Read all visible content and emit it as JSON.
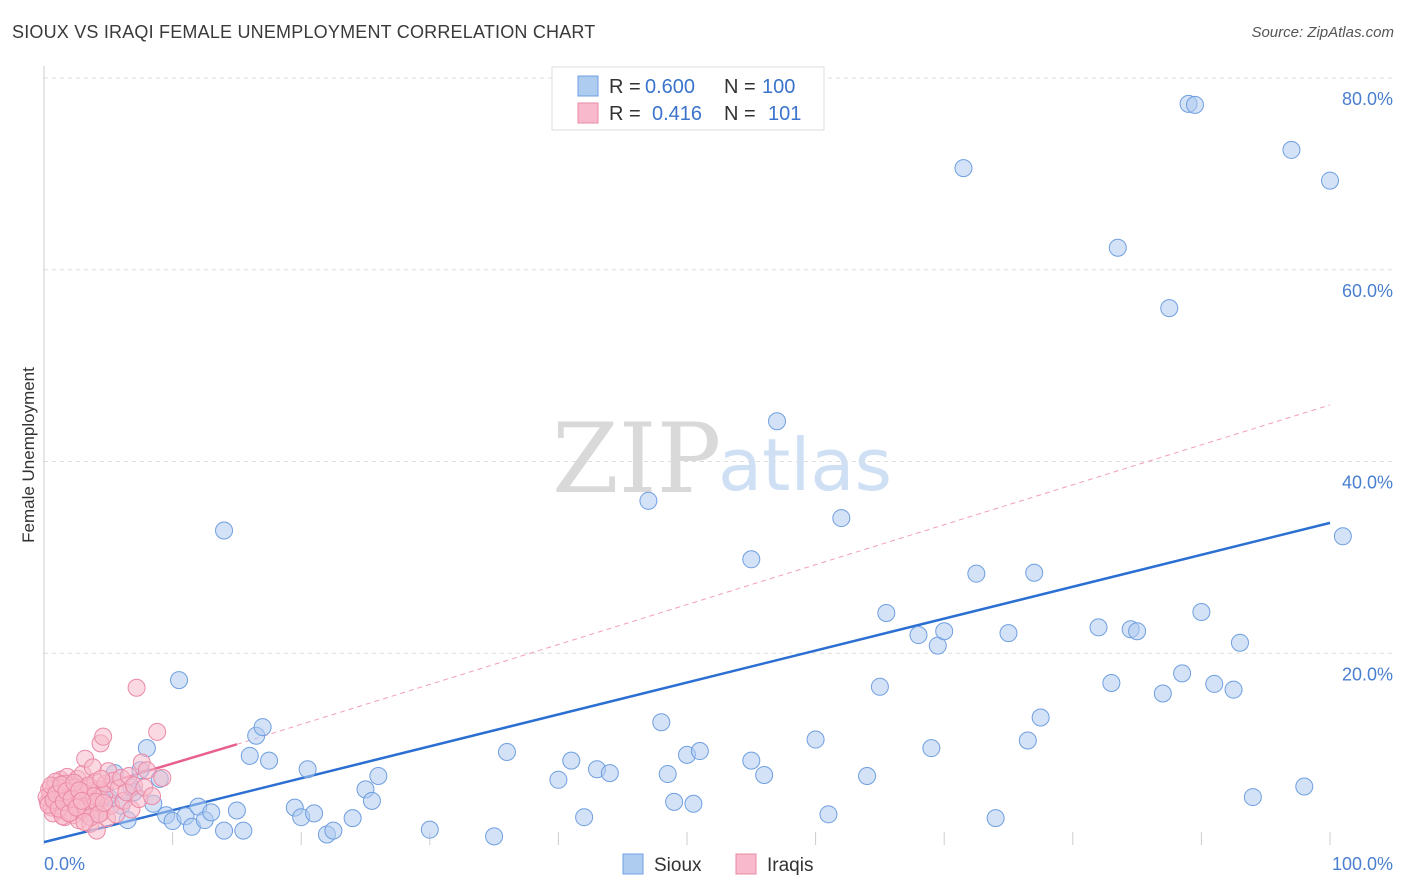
{
  "header": {
    "title": "SIOUX VS IRAQI FEMALE UNEMPLOYMENT CORRELATION CHART",
    "source": "Source: ZipAtlas.com"
  },
  "watermark": {
    "zip": "ZIP",
    "atlas": "atlas"
  },
  "colors": {
    "sioux_fill": "#aecbf0",
    "sioux_stroke": "#6f9fe0",
    "sioux_line": "#2a6fd1",
    "iraqi_fill": "#f7b9cb",
    "iraqi_stroke": "#ea8aa7",
    "iraqi_line": "#e8608c",
    "grid": "#dddddd",
    "tick_label": "#4a7fd0"
  },
  "legend": {
    "r_label": "R =",
    "n_label": "N =",
    "rows": [
      {
        "series": "Sioux",
        "r": "0.600",
        "n": "100"
      },
      {
        "series": "Iraqis",
        "r": "0.416",
        "n": "101"
      }
    ]
  },
  "chart_data": {
    "type": "scatter",
    "title": "SIOUX VS IRAQI FEMALE UNEMPLOYMENT CORRELATION CHART",
    "xlabel": "",
    "ylabel": "Female Unemployment",
    "xlim": [
      0,
      100
    ],
    "ylim": [
      0,
      80
    ],
    "x_tick_labels": [
      "0.0%",
      "100.0%"
    ],
    "y_tick_labels": [
      "20.0%",
      "40.0%",
      "60.0%",
      "80.0%"
    ],
    "y_ticks": [
      20,
      40,
      60,
      80
    ],
    "grid": true,
    "legend_position": "top-center",
    "series": [
      {
        "name": "Sioux",
        "r": 0.6,
        "n": 100,
        "trendline": {
          "x": [
            0,
            100
          ],
          "y": [
            0.3,
            33.6
          ],
          "style": "solid"
        },
        "points": [
          [
            0.5,
            5.2
          ],
          [
            1.5,
            4.8
          ],
          [
            2.0,
            4.1
          ],
          [
            3.5,
            4.6
          ],
          [
            4.0,
            3.2
          ],
          [
            5.0,
            5.0
          ],
          [
            5.5,
            7.5
          ],
          [
            6.0,
            4.1
          ],
          [
            6.5,
            2.6
          ],
          [
            7.0,
            5.5
          ],
          [
            7.5,
            7.8
          ],
          [
            8.0,
            10.1
          ],
          [
            8.5,
            4.3
          ],
          [
            9.0,
            6.9
          ],
          [
            9.5,
            3.1
          ],
          [
            10.0,
            2.5
          ],
          [
            10.5,
            17.2
          ],
          [
            11.0,
            3.0
          ],
          [
            11.5,
            1.9
          ],
          [
            12.0,
            4.0
          ],
          [
            12.5,
            2.6
          ],
          [
            13.0,
            3.4
          ],
          [
            14.0,
            1.5
          ],
          [
            14.0,
            32.8
          ],
          [
            15.0,
            3.6
          ],
          [
            15.5,
            1.5
          ],
          [
            16.0,
            9.3
          ],
          [
            16.5,
            11.4
          ],
          [
            17.0,
            12.3
          ],
          [
            17.5,
            8.8
          ],
          [
            19.5,
            3.9
          ],
          [
            20.0,
            2.9
          ],
          [
            20.5,
            7.9
          ],
          [
            21.0,
            3.3
          ],
          [
            22.0,
            1.1
          ],
          [
            22.5,
            1.5
          ],
          [
            24.0,
            2.8
          ],
          [
            25.0,
            5.8
          ],
          [
            25.5,
            4.6
          ],
          [
            26.0,
            7.2
          ],
          [
            30.0,
            1.6
          ],
          [
            35.0,
            0.9
          ],
          [
            36.0,
            9.7
          ],
          [
            40.0,
            6.8
          ],
          [
            41.0,
            8.8
          ],
          [
            42.0,
            2.9
          ],
          [
            43.0,
            7.9
          ],
          [
            44.0,
            7.5
          ],
          [
            47.0,
            35.9
          ],
          [
            48.0,
            12.8
          ],
          [
            48.5,
            7.4
          ],
          [
            49.0,
            4.5
          ],
          [
            50.0,
            9.4
          ],
          [
            50.5,
            4.3
          ],
          [
            51.0,
            9.8
          ],
          [
            55.0,
            8.8
          ],
          [
            55.0,
            29.8
          ],
          [
            56.0,
            7.3
          ],
          [
            57.0,
            44.2
          ],
          [
            60.0,
            11.0
          ],
          [
            61.0,
            3.2
          ],
          [
            62.0,
            34.1
          ],
          [
            64.0,
            7.2
          ],
          [
            65.0,
            16.5
          ],
          [
            65.5,
            24.2
          ],
          [
            68.0,
            21.9
          ],
          [
            69.0,
            10.1
          ],
          [
            69.5,
            20.8
          ],
          [
            70.0,
            22.3
          ],
          [
            71.5,
            70.6
          ],
          [
            72.5,
            28.3
          ],
          [
            74.0,
            2.8
          ],
          [
            75.0,
            22.1
          ],
          [
            76.5,
            10.9
          ],
          [
            77.0,
            28.4
          ],
          [
            77.5,
            13.3
          ],
          [
            82.0,
            22.7
          ],
          [
            83.0,
            16.9
          ],
          [
            83.5,
            62.3
          ],
          [
            84.5,
            22.5
          ],
          [
            85.0,
            22.3
          ],
          [
            87.0,
            15.8
          ],
          [
            87.5,
            56.0
          ],
          [
            88.5,
            17.9
          ],
          [
            89.0,
            77.3
          ],
          [
            89.5,
            77.2
          ],
          [
            90.0,
            24.3
          ],
          [
            91.0,
            16.8
          ],
          [
            92.5,
            16.2
          ],
          [
            93.0,
            21.1
          ],
          [
            94.0,
            5.0
          ],
          [
            97.0,
            72.5
          ],
          [
            98.0,
            6.1
          ],
          [
            100.0,
            69.3
          ],
          [
            101.0,
            32.2
          ],
          [
            3.0,
            3.6
          ],
          [
            4.5,
            4.9
          ],
          [
            2.5,
            6.3
          ],
          [
            1.0,
            4.4
          ],
          [
            6.8,
            6.0
          ]
        ]
      },
      {
        "name": "Iraqis",
        "r": 0.416,
        "n": 101,
        "trendline": {
          "x": [
            0,
            15
          ],
          "y": [
            4.5,
            10.5
          ],
          "style": "solid",
          "extension": {
            "x": [
              15,
              100
            ],
            "y": [
              10.5,
              45.9
            ],
            "style": "dashed"
          }
        },
        "points": [
          [
            0.3,
            4.5
          ],
          [
            0.5,
            5.2
          ],
          [
            0.6,
            3.9
          ],
          [
            0.8,
            6.1
          ],
          [
            1.0,
            4.8
          ],
          [
            1.1,
            5.5
          ],
          [
            1.2,
            3.6
          ],
          [
            1.3,
            6.8
          ],
          [
            1.4,
            4.2
          ],
          [
            1.5,
            5.0
          ],
          [
            1.6,
            2.9
          ],
          [
            1.7,
            4.6
          ],
          [
            1.8,
            7.1
          ],
          [
            1.9,
            3.5
          ],
          [
            2.0,
            5.7
          ],
          [
            2.1,
            4.0
          ],
          [
            2.2,
            6.3
          ],
          [
            2.3,
            3.1
          ],
          [
            2.4,
            5.4
          ],
          [
            2.5,
            4.4
          ],
          [
            2.6,
            6.9
          ],
          [
            2.7,
            2.6
          ],
          [
            2.8,
            5.1
          ],
          [
            2.9,
            3.8
          ],
          [
            3.0,
            7.4
          ],
          [
            3.1,
            4.7
          ],
          [
            3.2,
            9.0
          ],
          [
            3.3,
            3.3
          ],
          [
            3.4,
            6.0
          ],
          [
            3.5,
            4.9
          ],
          [
            3.6,
            2.2
          ],
          [
            3.7,
            5.6
          ],
          [
            3.8,
            8.1
          ],
          [
            3.9,
            3.9
          ],
          [
            4.0,
            6.6
          ],
          [
            4.1,
            1.5
          ],
          [
            4.2,
            4.3
          ],
          [
            4.3,
            5.8
          ],
          [
            4.4,
            10.6
          ],
          [
            4.5,
            3.4
          ],
          [
            4.6,
            11.3
          ],
          [
            4.7,
            5.3
          ],
          [
            4.8,
            6.4
          ],
          [
            4.9,
            2.8
          ],
          [
            5.0,
            7.7
          ],
          [
            5.2,
            4.1
          ],
          [
            5.4,
            6.7
          ],
          [
            5.6,
            3.2
          ],
          [
            5.8,
            5.9
          ],
          [
            6.0,
            7.0
          ],
          [
            6.2,
            4.6
          ],
          [
            6.4,
            5.5
          ],
          [
            6.6,
            7.2
          ],
          [
            6.8,
            3.7
          ],
          [
            7.0,
            6.2
          ],
          [
            7.2,
            16.4
          ],
          [
            7.4,
            4.8
          ],
          [
            7.6,
            8.6
          ],
          [
            7.8,
            6.0
          ],
          [
            8.0,
            7.8
          ],
          [
            8.4,
            5.1
          ],
          [
            8.8,
            11.8
          ],
          [
            9.2,
            7.0
          ],
          [
            0.4,
            5.8
          ],
          [
            0.7,
            3.3
          ],
          [
            0.9,
            6.6
          ],
          [
            1.05,
            4.1
          ],
          [
            1.25,
            5.9
          ],
          [
            1.45,
            3.0
          ],
          [
            1.65,
            6.4
          ],
          [
            1.85,
            4.9
          ],
          [
            2.05,
            3.4
          ],
          [
            2.25,
            5.2
          ],
          [
            2.45,
            6.0
          ],
          [
            2.65,
            4.3
          ],
          [
            2.85,
            3.7
          ],
          [
            3.05,
            5.5
          ],
          [
            3.25,
            4.0
          ],
          [
            3.45,
            6.2
          ],
          [
            3.65,
            2.9
          ],
          [
            3.85,
            5.1
          ],
          [
            4.05,
            4.5
          ],
          [
            4.25,
            3.2
          ],
          [
            4.45,
            6.9
          ],
          [
            4.65,
            4.4
          ],
          [
            0.2,
            5.0
          ],
          [
            0.35,
            4.2
          ],
          [
            0.55,
            6.2
          ],
          [
            0.75,
            4.7
          ],
          [
            0.95,
            5.3
          ],
          [
            1.15,
            3.8
          ],
          [
            1.35,
            6.3
          ],
          [
            1.55,
            4.5
          ],
          [
            1.75,
            5.6
          ],
          [
            1.95,
            3.3
          ],
          [
            2.15,
            4.8
          ],
          [
            2.35,
            6.5
          ],
          [
            2.55,
            3.9
          ],
          [
            2.75,
            5.7
          ],
          [
            2.95,
            4.6
          ],
          [
            3.15,
            2.4
          ]
        ]
      }
    ]
  }
}
